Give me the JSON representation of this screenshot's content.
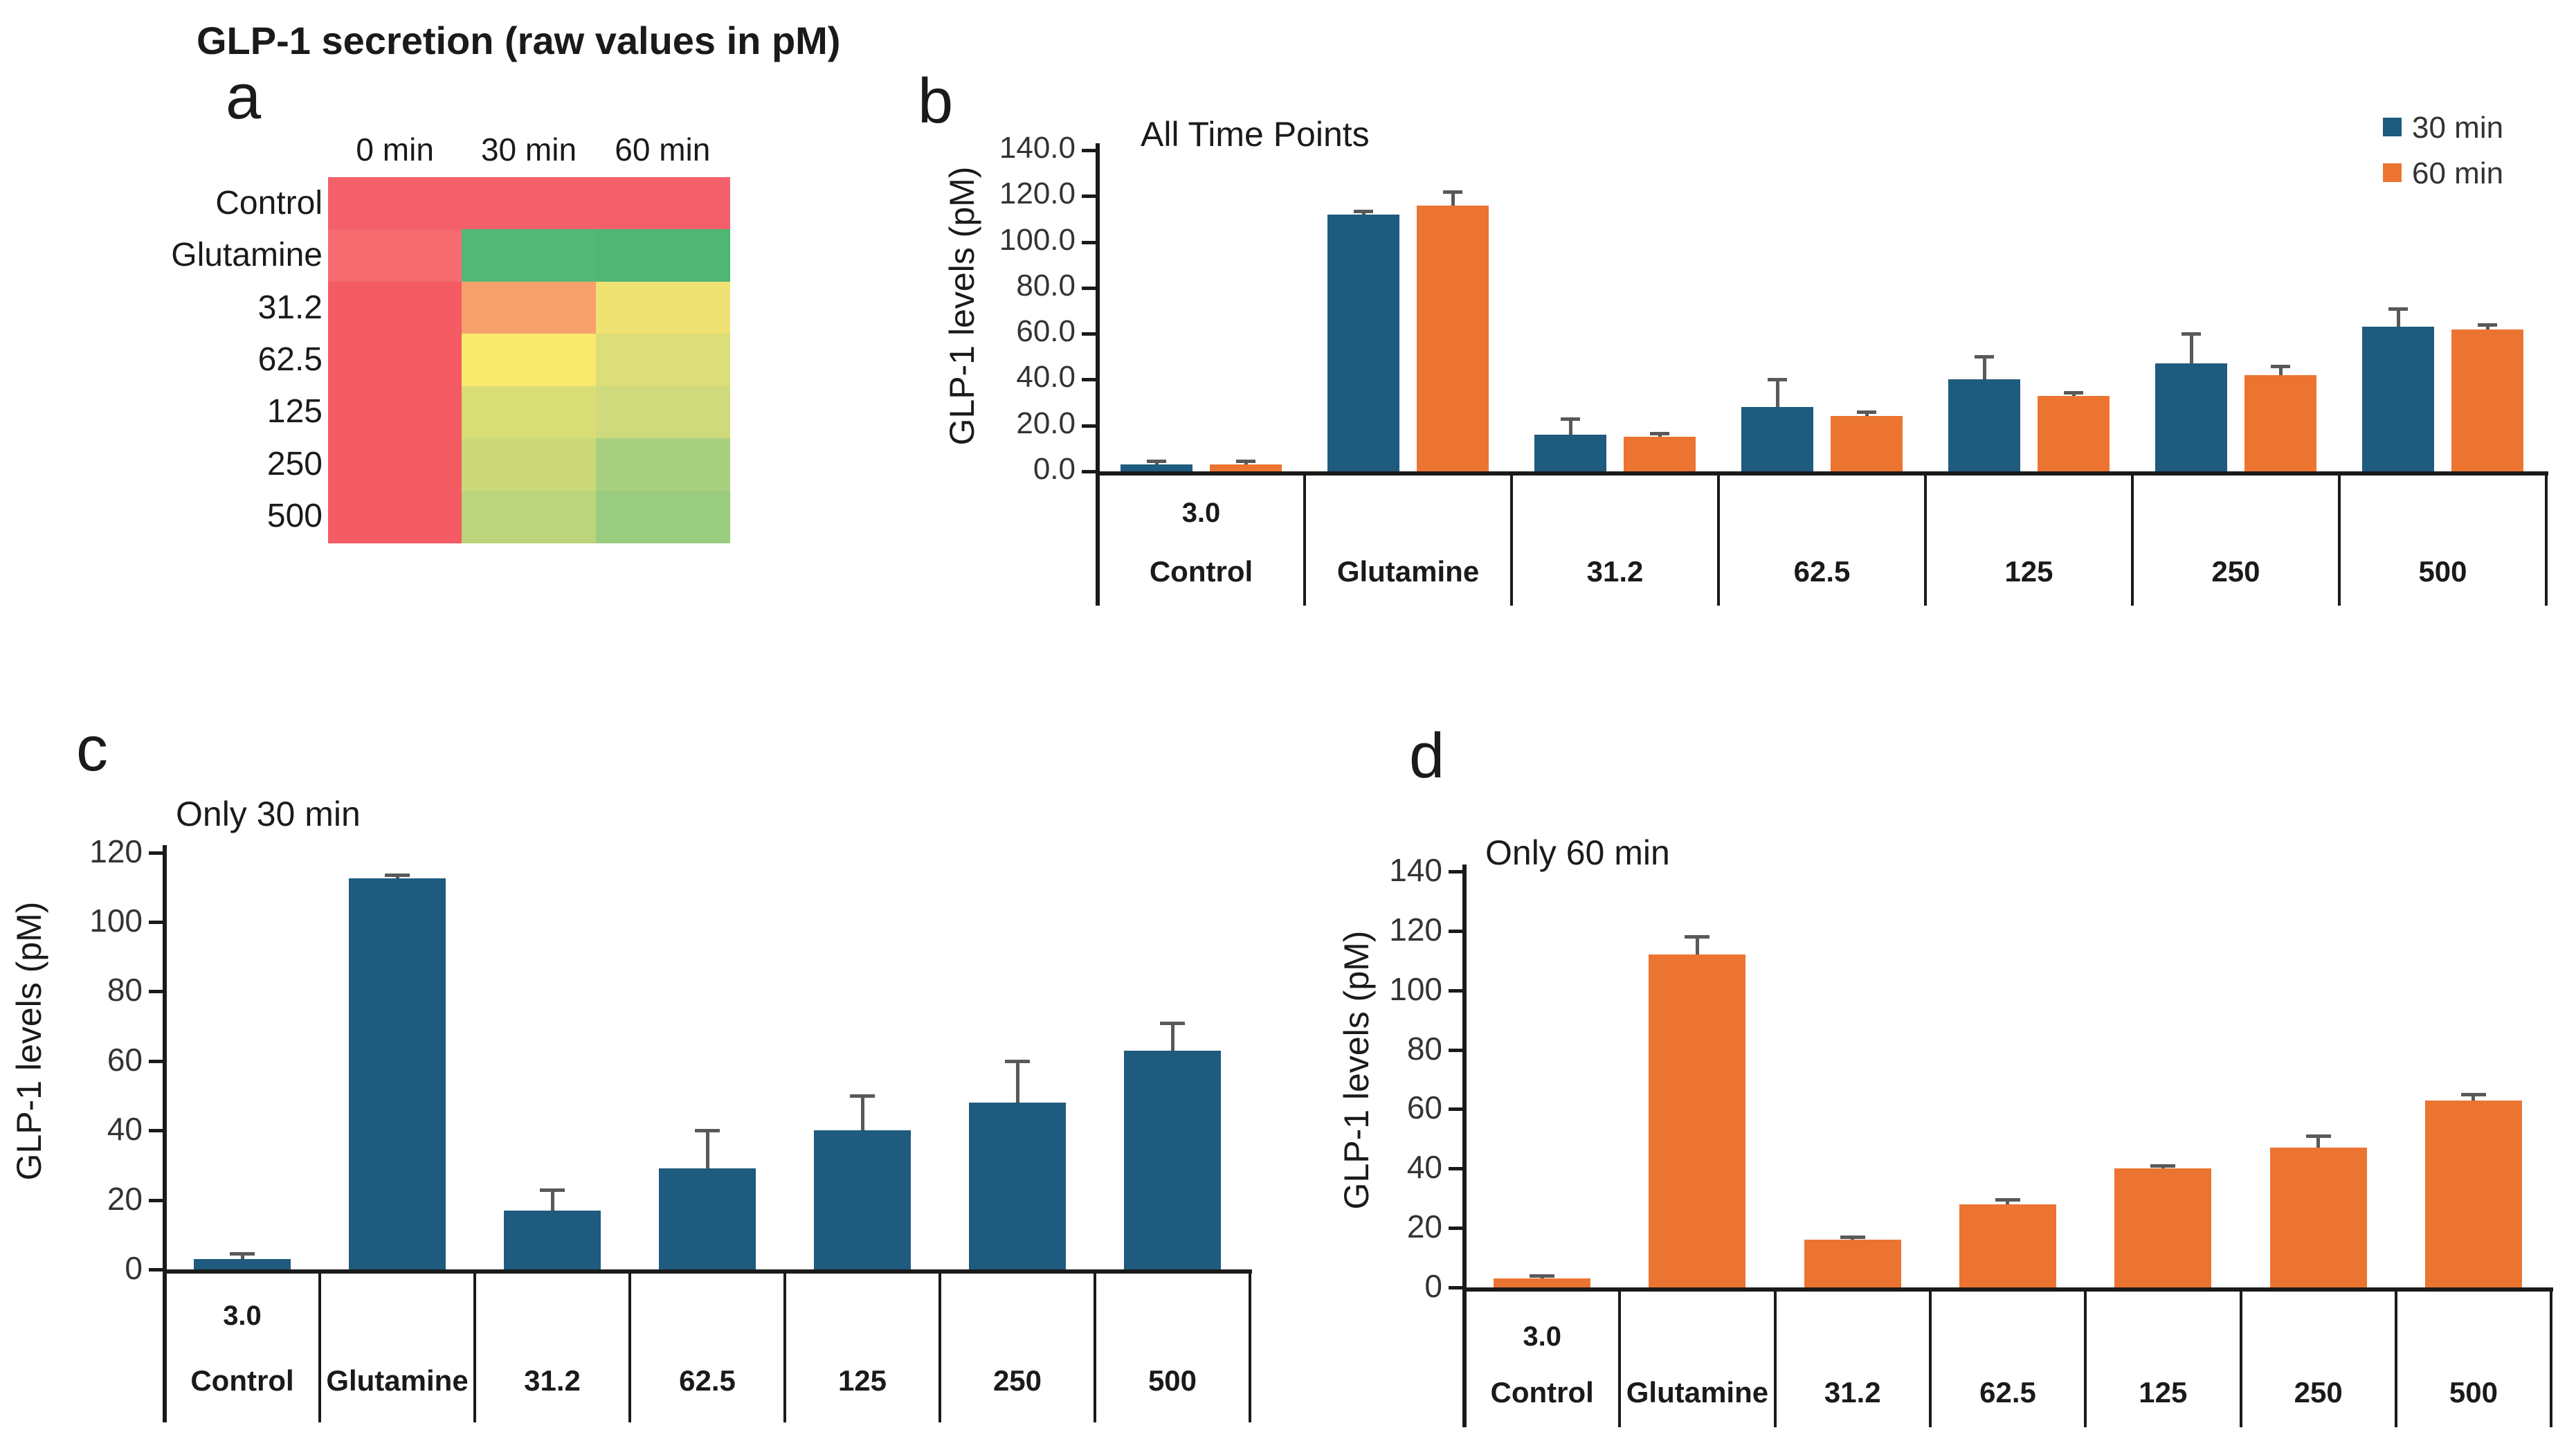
{
  "title": "GLP-1 secretion (raw values in pM)",
  "colors": {
    "blue": "#1E5B7E",
    "orange": "#EC7431",
    "error": "#595959",
    "axis": "#1A1A1A"
  },
  "chart_data": [
    {
      "id": "a",
      "type": "heatmap",
      "panel_label": "a",
      "columns": [
        "0 min",
        "30 min",
        "60 min"
      ],
      "rows": [
        "Control",
        "Glutamine",
        "31.2",
        "62.5",
        "125",
        "250",
        "500"
      ],
      "cell_colors": [
        [
          "#F4606A",
          "#F4606A",
          "#F4606A"
        ],
        [
          "#F56B70",
          "#53B877",
          "#4FB673"
        ],
        [
          "#F45B63",
          "#F8A06B",
          "#F0E173"
        ],
        [
          "#F45B63",
          "#F7EA6C",
          "#DCDE79"
        ],
        [
          "#F45B63",
          "#D9DD76",
          "#CEDA7C"
        ],
        [
          "#F45B63",
          "#CBD97A",
          "#A9D07F"
        ],
        [
          "#F45B63",
          "#BCD47B",
          "#99CC7F"
        ]
      ],
      "legend_note": ""
    },
    {
      "id": "b",
      "type": "bar",
      "panel_label": "b",
      "title": "All Time Points",
      "ylabel": "GLP-1 levels (pM)",
      "ylim": [
        0,
        140
      ],
      "ytick_labels": [
        "0.0",
        "20.0",
        "40.0",
        "60.0",
        "80.0",
        "100.0",
        "120.0",
        "140.0"
      ],
      "categories": [
        "Control",
        "Glutamine",
        "31.2",
        "62.5",
        "125",
        "250",
        "500"
      ],
      "first_cell_extra_label": "3.0",
      "legend_position": "top-right",
      "grid": false,
      "series": [
        {
          "name": "30 min",
          "color": "blue",
          "values": [
            3.0,
            112.0,
            16.0,
            28.0,
            40.0,
            47.0,
            63.0
          ],
          "errors_up": [
            1.5,
            1.5,
            7.0,
            12.0,
            10.0,
            13.0,
            8.0
          ]
        },
        {
          "name": "60 min",
          "color": "orange",
          "values": [
            3.0,
            116.0,
            15.0,
            24.0,
            33.0,
            42.0,
            62.0
          ],
          "errors_up": [
            1.5,
            6.0,
            1.5,
            2.0,
            1.5,
            4.0,
            2.0
          ]
        }
      ]
    },
    {
      "id": "c",
      "type": "bar",
      "panel_label": "c",
      "title": "Only 30 min",
      "ylabel": "GLP-1 levels (pM)",
      "ylim": [
        0,
        120
      ],
      "ytick_labels": [
        "0",
        "20",
        "40",
        "60",
        "80",
        "100",
        "120"
      ],
      "categories": [
        "Control",
        "Glutamine",
        "31.2",
        "62.5",
        "125",
        "250",
        "500"
      ],
      "first_cell_extra_label": "3.0",
      "legend_position": "none",
      "grid": false,
      "series": [
        {
          "name": "30 min",
          "color": "blue",
          "values": [
            3.0,
            112.5,
            17.0,
            29.0,
            40.0,
            48.0,
            63.0
          ],
          "errors_up": [
            1.5,
            1.0,
            6.0,
            11.0,
            10.0,
            12.0,
            8.0
          ]
        }
      ]
    },
    {
      "id": "d",
      "type": "bar",
      "panel_label": "d",
      "title": "Only 60 min",
      "ylabel": "GLP-1 levels (pM)",
      "ylim": [
        0,
        140
      ],
      "ytick_labels": [
        "0",
        "20",
        "40",
        "60",
        "80",
        "100",
        "120",
        "140"
      ],
      "categories": [
        "Control",
        "Glutamine",
        "31.2",
        "62.5",
        "125",
        "250",
        "500"
      ],
      "first_cell_extra_label": "3.0",
      "legend_position": "none",
      "grid": false,
      "series": [
        {
          "name": "60 min",
          "color": "orange",
          "values": [
            3.0,
            112.0,
            16.0,
            28.0,
            40.0,
            47.0,
            63.0
          ],
          "errors_up": [
            1.0,
            6.0,
            1.0,
            1.5,
            1.0,
            4.0,
            2.0
          ]
        }
      ]
    }
  ]
}
